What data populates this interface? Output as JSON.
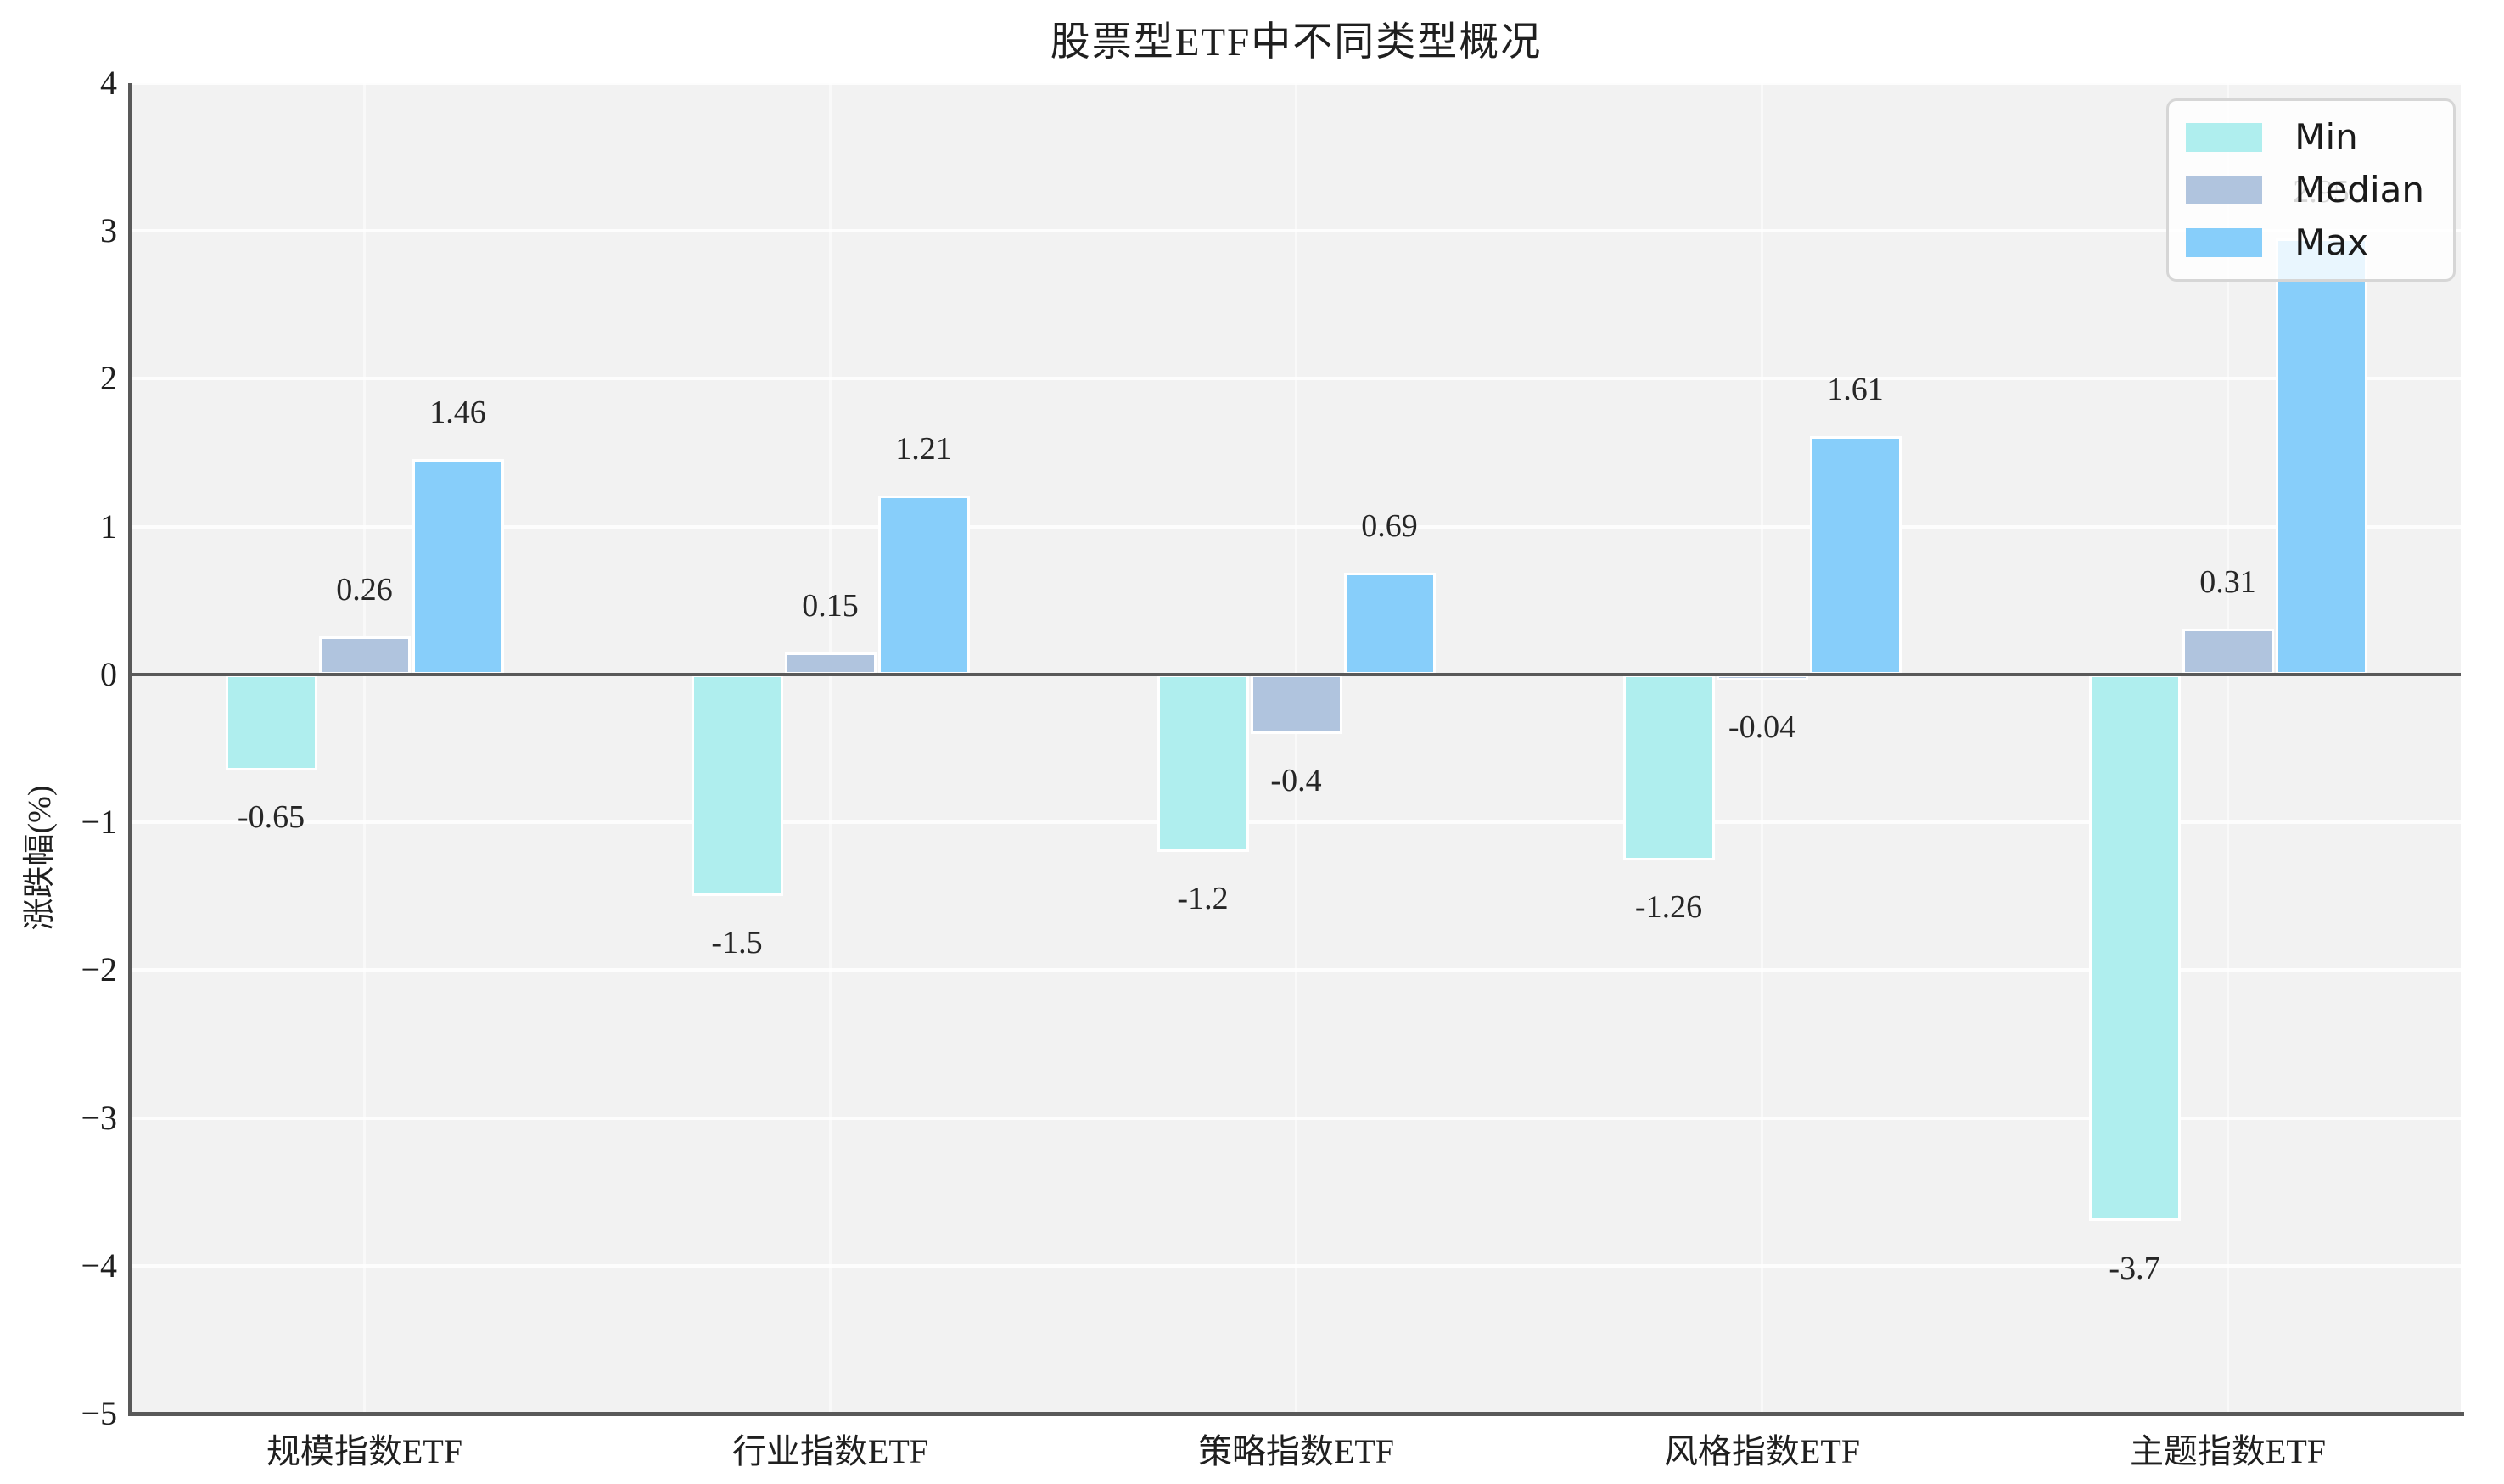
{
  "figure": {
    "background": "#ffffff",
    "plot_background": "#f2f2f2",
    "axis_color": "#595959",
    "grid_color": "#ffffff",
    "text_color": "#262626"
  },
  "chart_data": {
    "type": "bar",
    "title": "股票型ETF中不同类型概况",
    "xlabel": "",
    "ylabel": "涨跌幅(%)",
    "categories": [
      "规模指数ETF",
      "行业指数ETF",
      "策略指数ETF",
      "风格指数ETF",
      "主题指数ETF"
    ],
    "series": [
      {
        "name": "Min",
        "color": "#AFEEEE",
        "values": [
          -0.65,
          -1.5,
          -1.2,
          -1.26,
          -3.7
        ]
      },
      {
        "name": "Median",
        "color": "#B0C4DE",
        "values": [
          0.26,
          0.15,
          -0.4,
          -0.04,
          0.31
        ]
      },
      {
        "name": "Max",
        "color": "#87CEFA",
        "values": [
          1.46,
          1.21,
          0.69,
          1.61,
          2.95
        ]
      }
    ],
    "ylim": [
      -5,
      4
    ],
    "yticks": [
      4,
      3,
      2,
      1,
      0,
      -1,
      -2,
      -3,
      -4,
      -5
    ],
    "grid": true,
    "bar_labels_visible": true,
    "legend": {
      "position": "upper right",
      "entries": [
        "Min",
        "Median",
        "Max"
      ]
    }
  }
}
